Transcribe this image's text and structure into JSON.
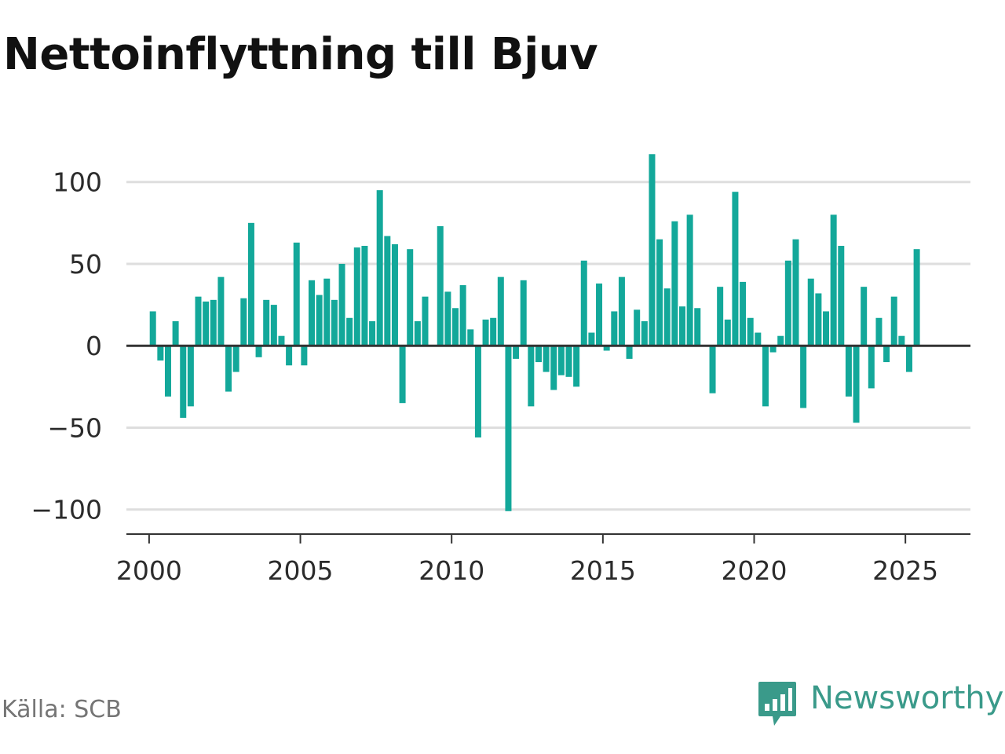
{
  "title": "Nettoinflyttning till Bjuv",
  "source": "Källa: SCB",
  "brand": {
    "name": "Newsworthy",
    "icon": "newsworthy-logo-icon"
  },
  "colors": {
    "bar": "#13a89a",
    "grid": "#dedede",
    "zero_line": "#333333",
    "axis_line": "#333333",
    "brand": "#3a9a8a"
  },
  "chart_data": {
    "type": "bar",
    "title": "Nettoinflyttning till Bjuv",
    "xlabel": "",
    "ylabel": "",
    "ylim": [
      -115,
      120
    ],
    "xlim": [
      1999.25,
      2027.15
    ],
    "grid": true,
    "legend": "none",
    "y_ticks": [
      100,
      50,
      0,
      -50,
      -100
    ],
    "y_tick_labels": [
      "100",
      "50",
      "0",
      "−50",
      "−100"
    ],
    "x_ticks": [
      2000,
      2005,
      2010,
      2015,
      2020,
      2025
    ],
    "x_tick_labels": [
      "2000",
      "2005",
      "2010",
      "2015",
      "2020",
      "2025"
    ],
    "x": [
      2000.125,
      2000.375,
      2000.625,
      2000.875,
      2001.125,
      2001.375,
      2001.625,
      2001.875,
      2002.125,
      2002.375,
      2002.625,
      2002.875,
      2003.125,
      2003.375,
      2003.625,
      2003.875,
      2004.125,
      2004.375,
      2004.625,
      2004.875,
      2005.125,
      2005.375,
      2005.625,
      2005.875,
      2006.125,
      2006.375,
      2006.625,
      2006.875,
      2007.125,
      2007.375,
      2007.625,
      2007.875,
      2008.125,
      2008.375,
      2008.625,
      2008.875,
      2009.125,
      2009.375,
      2009.625,
      2009.875,
      2010.125,
      2010.375,
      2010.625,
      2010.875,
      2011.125,
      2011.375,
      2011.625,
      2011.875,
      2012.125,
      2012.375,
      2012.625,
      2012.875,
      2013.125,
      2013.375,
      2013.625,
      2013.875,
      2014.125,
      2014.375,
      2014.625,
      2014.875,
      2015.125,
      2015.375,
      2015.625,
      2015.875,
      2016.125,
      2016.375,
      2016.625,
      2016.875,
      2017.125,
      2017.375,
      2017.625,
      2017.875,
      2018.125,
      2018.375,
      2018.625,
      2018.875,
      2019.125,
      2019.375,
      2019.625,
      2019.875,
      2020.125,
      2020.375,
      2020.625,
      2020.875,
      2021.125,
      2021.375,
      2021.625,
      2021.875,
      2022.125,
      2022.375,
      2022.625,
      2022.875,
      2023.125,
      2023.375,
      2023.625,
      2023.875,
      2024.125,
      2024.375,
      2024.625,
      2024.875,
      2025.125,
      2025.375
    ],
    "values": [
      21,
      -9,
      -31,
      15,
      -44,
      -37,
      30,
      27,
      28,
      42,
      -28,
      -16,
      29,
      75,
      -7,
      28,
      25,
      6,
      -12,
      63,
      -12,
      40,
      31,
      41,
      28,
      50,
      17,
      60,
      61,
      15,
      95,
      67,
      62,
      -35,
      59,
      15,
      30,
      0,
      73,
      33,
      23,
      37,
      10,
      -56,
      16,
      17,
      42,
      -101,
      -8,
      40,
      -37,
      -10,
      -16,
      -27,
      -18,
      -19,
      -25,
      52,
      8,
      38,
      -3,
      21,
      42,
      -8,
      22,
      15,
      117,
      65,
      35,
      76,
      24,
      80,
      23,
      0,
      -29,
      36,
      16,
      94,
      39,
      17,
      8,
      -37,
      -4,
      6,
      52,
      65,
      -38,
      41,
      32,
      21,
      80,
      61,
      -31,
      -47,
      36,
      -26,
      17,
      -10,
      30,
      6,
      -16,
      59
    ]
  }
}
